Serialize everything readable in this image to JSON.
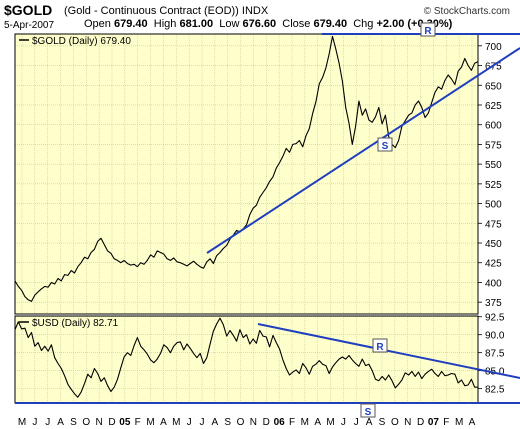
{
  "header": {
    "symbol": "$GOLD",
    "description": "(Gold - Continuous Contract (EOD))",
    "exchange": "INDX",
    "date": "5-Apr-2007",
    "open_label": "Open",
    "open": "679.40",
    "high_label": "High",
    "high": "681.00",
    "low_label": "Low",
    "low": "676.60",
    "close_label": "Close",
    "close": "679.40",
    "chg_label": "Chg",
    "chg": "+2.00 (+0.30%)",
    "watermark": "© StockCharts.com"
  },
  "chart_data": [
    {
      "type": "line",
      "legend": "$GOLD (Daily) 679.40",
      "ylim": [
        360,
        715
      ],
      "yticks": [
        375,
        400,
        425,
        450,
        475,
        500,
        525,
        550,
        575,
        600,
        625,
        650,
        675,
        700
      ],
      "grid": true,
      "background": "#ffffcc",
      "line_color": "#000000",
      "x_tick_labels": [
        "M",
        "J",
        "J",
        "A",
        "S",
        "O",
        "N",
        "D",
        "05",
        "F",
        "M",
        "A",
        "M",
        "J",
        "J",
        "A",
        "S",
        "O",
        "N",
        "D",
        "06",
        "F",
        "M",
        "A",
        "M",
        "J",
        "J",
        "A",
        "S",
        "O",
        "N",
        "D",
        "07",
        "F",
        "M",
        "A"
      ],
      "x_tick_bold": [
        "05",
        "06",
        "07"
      ],
      "series": [
        {
          "values": [
            402,
            395,
            390,
            382,
            378,
            376,
            384,
            388,
            392,
            395,
            394,
            400,
            398,
            405,
            402,
            410,
            409,
            415,
            412,
            420,
            425,
            432,
            430,
            438,
            442,
            452,
            456,
            448,
            440,
            437,
            430,
            428,
            425,
            428,
            424,
            422,
            423,
            420,
            425,
            423,
            428,
            435,
            432,
            440,
            438,
            436,
            430,
            428,
            431,
            426,
            425,
            423,
            421,
            424,
            427,
            423,
            420,
            418,
            426,
            430,
            424,
            434,
            438,
            443,
            447,
            455,
            460,
            466,
            464,
            468,
            473,
            486,
            494,
            498,
            508,
            514,
            520,
            528,
            534,
            545,
            552,
            560,
            570,
            565,
            575,
            576,
            580,
            572,
            586,
            595,
            614,
            629,
            652,
            660,
            672,
            690,
            712,
            696,
            678,
            655,
            622,
            602,
            575,
            598,
            630,
            612,
            620,
            606,
            603,
            610,
            622,
            601,
            612,
            585,
            575,
            571,
            580,
            598,
            605,
            612,
            615,
            625,
            630,
            622,
            609,
            615,
            628,
            641,
            648,
            645,
            656,
            663,
            658,
            651,
            668,
            673,
            684,
            675,
            669,
            678,
            680
          ]
        }
      ],
      "annotations": [
        {
          "label": "R",
          "kind": "resistance"
        },
        {
          "label": "S",
          "kind": "support"
        }
      ],
      "trendline_color": "#1f3fbf"
    },
    {
      "type": "line",
      "legend": "$USD (Daily) 82.71",
      "ylim": [
        80.5,
        92.6
      ],
      "yticks": [
        82.5,
        85.0,
        87.5,
        90.0,
        92.5
      ],
      "grid": true,
      "background": "#ffffcc",
      "line_color": "#000000",
      "x_tick_labels": [
        "M",
        "J",
        "J",
        "A",
        "S",
        "O",
        "N",
        "D",
        "05",
        "F",
        "M",
        "A",
        "M",
        "J",
        "J",
        "A",
        "S",
        "O",
        "N",
        "D",
        "06",
        "F",
        "M",
        "A",
        "M",
        "J",
        "J",
        "A",
        "S",
        "O",
        "N",
        "D",
        "07",
        "F",
        "M",
        "A"
      ],
      "x_tick_bold": [
        "05",
        "06",
        "07"
      ],
      "series": [
        {
          "values": [
            90.7,
            91.8,
            90.8,
            90.9,
            89.6,
            90.3,
            88.4,
            88.9,
            87.8,
            88.4,
            87.7,
            88.6,
            86.8,
            86.0,
            85.3,
            84.3,
            83.1,
            82.4,
            81.8,
            81.3,
            82.0,
            83.2,
            84.5,
            84.0,
            85.3,
            84.6,
            83.5,
            84.0,
            82.9,
            82.1,
            82.7,
            83.8,
            85.4,
            86.9,
            87.5,
            87.1,
            88.5,
            89.6,
            88.4,
            87.9,
            87.3,
            86.5,
            86.1,
            86.6,
            87.4,
            88.6,
            88.2,
            87.5,
            88.4,
            88.9,
            89.0,
            87.9,
            88.7,
            88.1,
            87.4,
            86.8,
            87.4,
            86.0,
            86.8,
            88.7,
            90.5,
            91.5,
            92.3,
            91.4,
            89.8,
            90.6,
            89.9,
            89.1,
            90.7,
            89.6,
            90.0,
            88.7,
            89.4,
            88.8,
            90.6,
            89.8,
            89.7,
            88.3,
            89.9,
            88.9,
            88.0,
            86.5,
            85.3,
            84.4,
            84.8,
            85.1,
            84.6,
            86.0,
            85.4,
            84.5,
            85.6,
            85.9,
            86.4,
            85.9,
            85.7,
            84.6,
            85.5,
            86.1,
            86.6,
            86.9,
            86.6,
            87.1,
            86.5,
            86.0,
            85.6,
            86.6,
            85.7,
            85.9,
            85.0,
            83.8,
            83.6,
            84.2,
            83.7,
            84.4,
            83.6,
            82.6,
            83.1,
            83.7,
            84.7,
            84.4,
            84.9,
            84.2,
            84.8,
            83.9,
            84.5,
            84.9,
            85.2,
            84.6,
            84.2,
            84.9,
            84.3,
            84.4,
            84.6,
            84.5,
            83.3,
            83.7,
            82.9,
            83.0,
            83.8,
            82.7,
            82.7
          ]
        }
      ],
      "annotations": [
        {
          "label": "R",
          "kind": "resistance"
        },
        {
          "label": "S",
          "kind": "support"
        }
      ],
      "trendline_color": "#1f3fbf"
    }
  ]
}
